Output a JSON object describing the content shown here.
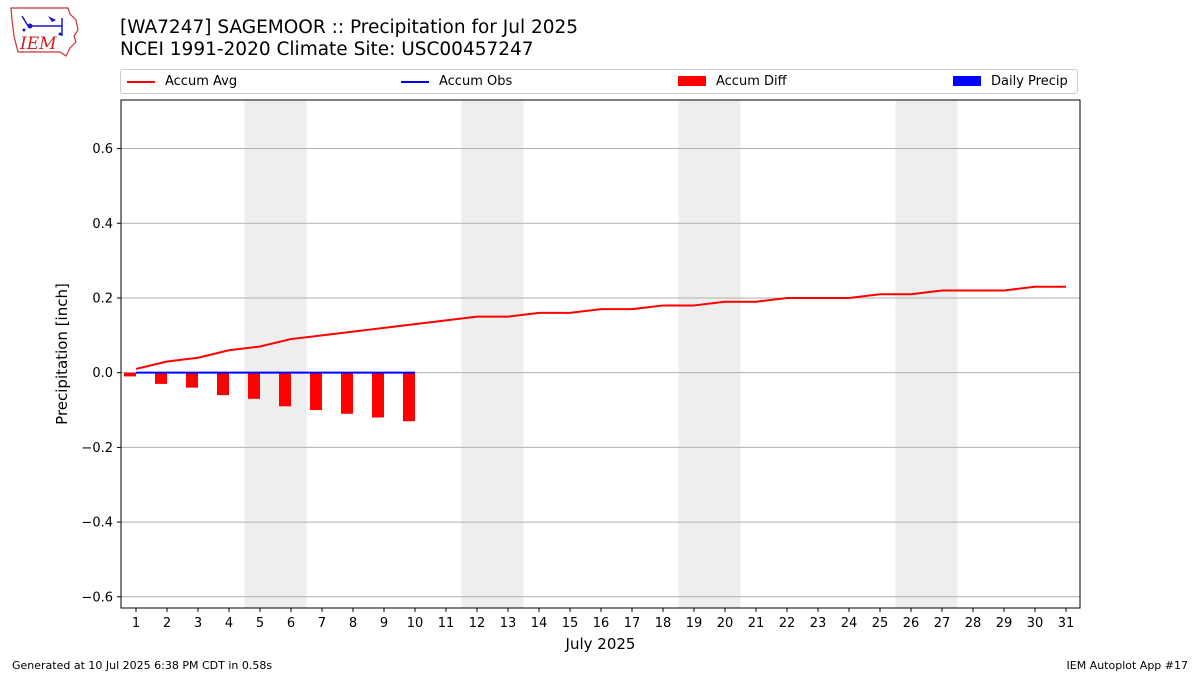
{
  "header": {
    "title_line1": "[WA7247] SAGEMOOR :: Precipitation for Jul 2025",
    "title_line2": "NCEI 1991-2020 Climate Site: USC00457247",
    "logo_text": "IEM"
  },
  "footer": {
    "left": "Generated at 10 Jul 2025 6:38 PM CDT in 0.58s",
    "right": "IEM Autoplot App #17"
  },
  "colors": {
    "avg": "#ff0000",
    "obs": "#0000ff",
    "diff": "#ff0000",
    "daily": "#0000ff",
    "weekend_shade": "#eeeeee",
    "grid": "#b0b0b0"
  },
  "chart_data": {
    "type": "bar",
    "xlabel": "July 2025",
    "ylabel": "Precipitation [inch]",
    "ylim": [
      -0.63,
      0.73
    ],
    "yticks": [
      -0.6,
      -0.4,
      -0.2,
      0.0,
      0.2,
      0.4,
      0.6
    ],
    "ytick_labels": [
      "−0.6",
      "−0.4",
      "−0.2",
      "0.0",
      "0.2",
      "0.4",
      "0.6"
    ],
    "grid": "horizontal",
    "legend_position": "top",
    "days": [
      1,
      2,
      3,
      4,
      5,
      6,
      7,
      8,
      9,
      10,
      11,
      12,
      13,
      14,
      15,
      16,
      17,
      18,
      19,
      20,
      21,
      22,
      23,
      24,
      25,
      26,
      27,
      28,
      29,
      30,
      31
    ],
    "weekend_shaded_days": [
      [
        5,
        6
      ],
      [
        12,
        13
      ],
      [
        19,
        20
      ],
      [
        26,
        27
      ]
    ],
    "series": [
      {
        "name": "Accum Avg",
        "kind": "line",
        "color": "#ff0000",
        "values": [
          0.01,
          0.03,
          0.04,
          0.06,
          0.07,
          0.09,
          0.1,
          0.11,
          0.12,
          0.13,
          0.14,
          0.15,
          0.15,
          0.16,
          0.16,
          0.17,
          0.17,
          0.18,
          0.18,
          0.19,
          0.19,
          0.2,
          0.2,
          0.2,
          0.21,
          0.21,
          0.22,
          0.22,
          0.22,
          0.23,
          0.23
        ]
      },
      {
        "name": "Accum Obs",
        "kind": "line",
        "color": "#0000ff",
        "values": [
          0,
          0,
          0,
          0,
          0,
          0,
          0,
          0,
          0,
          0
        ]
      },
      {
        "name": "Accum Diff",
        "kind": "bar",
        "color": "#ff0000",
        "values": [
          -0.01,
          -0.03,
          -0.04,
          -0.06,
          -0.07,
          -0.09,
          -0.1,
          -0.11,
          -0.12,
          -0.13
        ]
      },
      {
        "name": "Daily Precip",
        "kind": "bar",
        "color": "#0000ff",
        "values": [
          0,
          0,
          0,
          0,
          0,
          0,
          0,
          0,
          0,
          0
        ]
      }
    ]
  }
}
